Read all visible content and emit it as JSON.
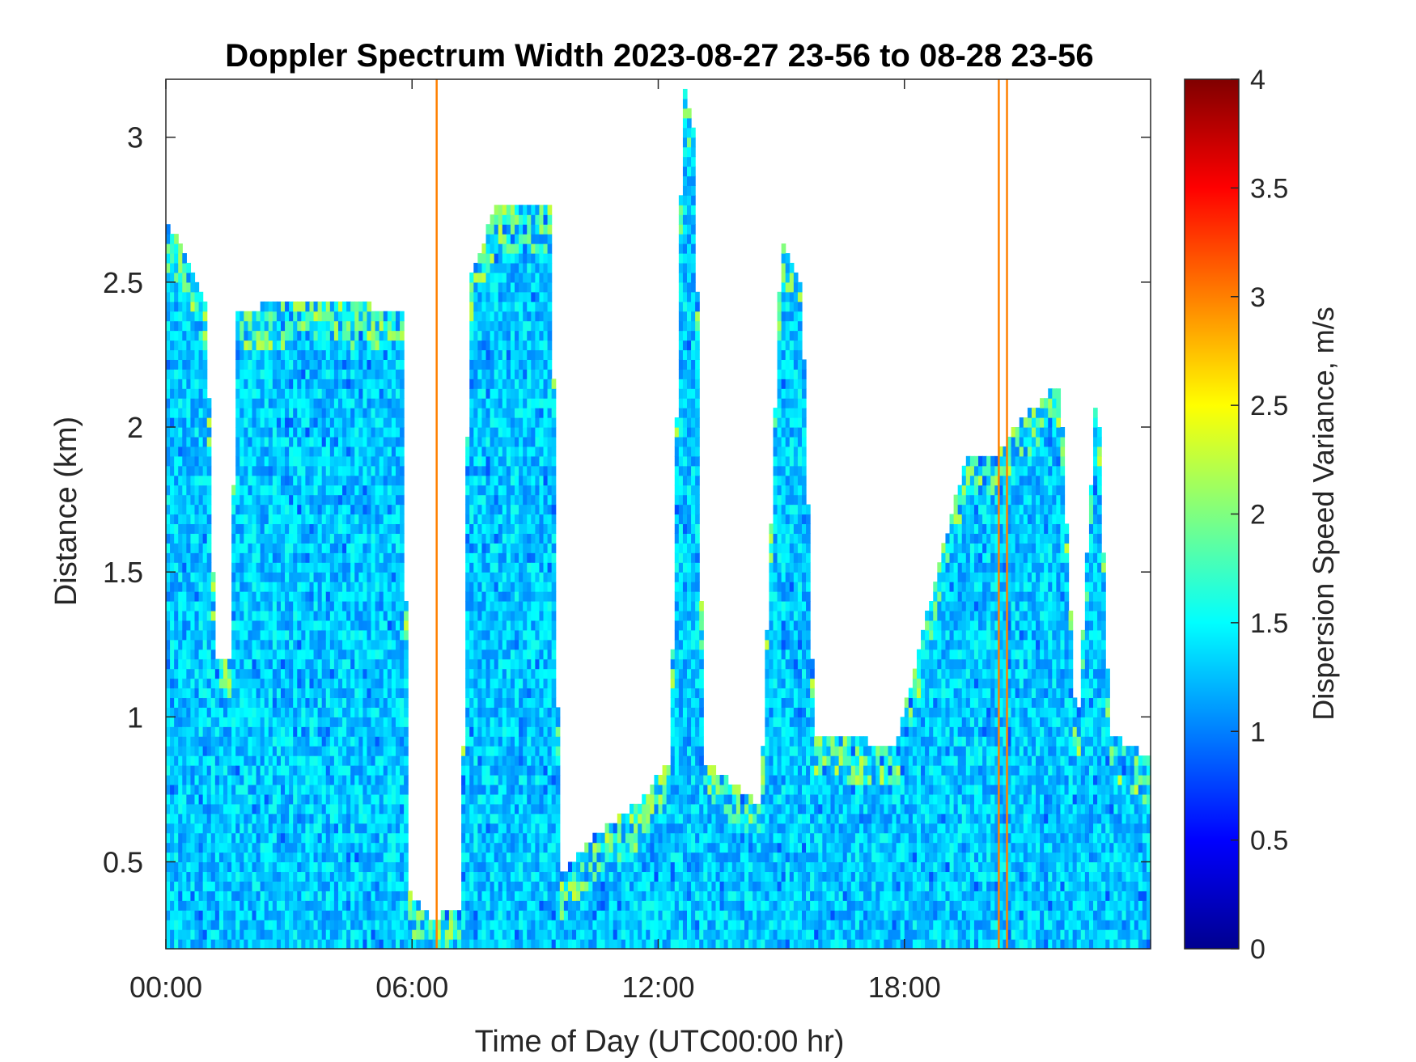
{
  "chart_data": {
    "type": "heatmap",
    "title": "Doppler Spectrum Width 2023-08-27 23-56 to 08-28 23-56",
    "xlabel": "Time of Day (UTC00:00 hr)",
    "ylabel": "Distance (km)",
    "xlim": [
      0,
      24
    ],
    "ylim": [
      0.2,
      3.2
    ],
    "x_ticks": [
      0,
      6,
      12,
      18
    ],
    "x_tick_labels": [
      "00:00",
      "06:00",
      "12:00",
      "18:00"
    ],
    "y_ticks": [
      0.5,
      1,
      1.5,
      2,
      2.5,
      3
    ],
    "y_tick_labels": [
      "0.5",
      "1",
      "1.5",
      "2",
      "2.5",
      "3"
    ],
    "colorbar": {
      "label": "Dispersion Speed Variance, m/s",
      "colormap": "jet",
      "range": [
        0,
        4
      ],
      "ticks": [
        0,
        0.5,
        1,
        1.5,
        2,
        2.5,
        3,
        3.5,
        4
      ],
      "tick_labels": [
        "0",
        "0.5",
        "1",
        "1.5",
        "2",
        "2.5",
        "3",
        "3.5",
        "4"
      ]
    },
    "typical_value_range": [
      1.0,
      1.6
    ],
    "orange_streaks": [
      {
        "time_hr": 6.6,
        "value": 3.0
      },
      {
        "time_hr": 20.3,
        "value": 3.0
      },
      {
        "time_hr": 20.5,
        "value": 3.0
      }
    ],
    "coverage_profile": [
      {
        "t": 0.0,
        "top_km": 2.7
      },
      {
        "t": 0.5,
        "top_km": 2.6
      },
      {
        "t": 1.0,
        "top_km": 2.4
      },
      {
        "t": 1.2,
        "top_km": 1.2
      },
      {
        "t": 1.6,
        "top_km": 1.2
      },
      {
        "t": 1.7,
        "top_km": 2.4
      },
      {
        "t": 3.5,
        "top_km": 2.45
      },
      {
        "t": 5.8,
        "top_km": 2.4
      },
      {
        "t": 5.9,
        "top_km": 0.4
      },
      {
        "t": 6.5,
        "top_km": 0.3
      },
      {
        "t": 7.2,
        "top_km": 0.35
      },
      {
        "t": 7.4,
        "top_km": 2.5
      },
      {
        "t": 8.0,
        "top_km": 2.75
      },
      {
        "t": 9.4,
        "top_km": 2.75
      },
      {
        "t": 9.6,
        "top_km": 0.45
      },
      {
        "t": 10.5,
        "top_km": 0.6
      },
      {
        "t": 11.5,
        "top_km": 0.7
      },
      {
        "t": 12.3,
        "top_km": 0.85
      },
      {
        "t": 12.6,
        "top_km": 3.2
      },
      {
        "t": 12.9,
        "top_km": 3.0
      },
      {
        "t": 13.1,
        "top_km": 0.85
      },
      {
        "t": 14.5,
        "top_km": 0.7
      },
      {
        "t": 15.0,
        "top_km": 2.65
      },
      {
        "t": 15.5,
        "top_km": 2.5
      },
      {
        "t": 15.8,
        "top_km": 0.95
      },
      {
        "t": 17.8,
        "top_km": 0.9
      },
      {
        "t": 18.8,
        "top_km": 1.5
      },
      {
        "t": 19.5,
        "top_km": 1.9
      },
      {
        "t": 20.2,
        "top_km": 1.9
      },
      {
        "t": 21.0,
        "top_km": 2.05
      },
      {
        "t": 21.8,
        "top_km": 2.15
      },
      {
        "t": 22.2,
        "top_km": 0.9
      },
      {
        "t": 22.7,
        "top_km": 2.2
      },
      {
        "t": 23.0,
        "top_km": 0.95
      },
      {
        "t": 24.0,
        "top_km": 0.85
      }
    ]
  }
}
